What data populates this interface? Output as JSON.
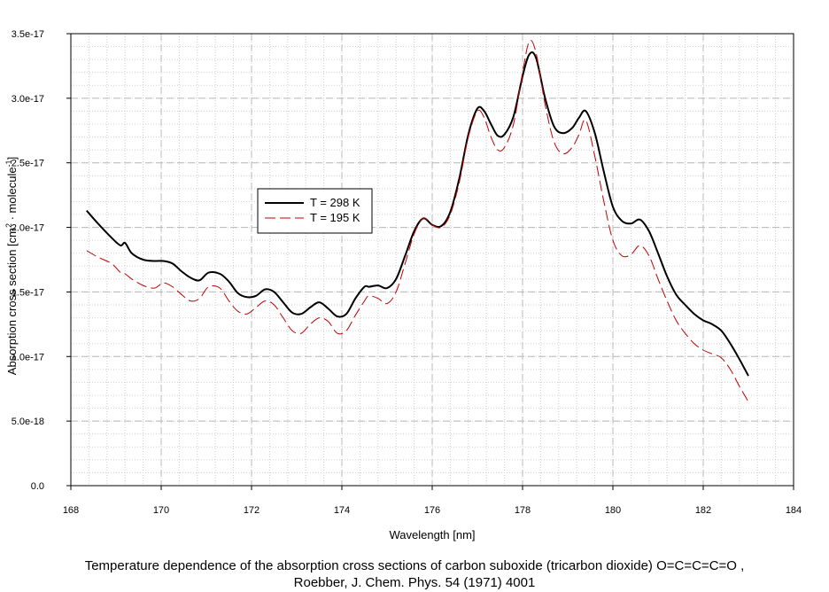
{
  "chart_data": {
    "type": "line",
    "xlabel": "Wavelength [nm]",
    "ylabel_main": "Absorption cross section [cm",
    "ylabel_sup1": "2",
    "ylabel_mid": " · molecule",
    "ylabel_sup2": "-1",
    "ylabel_end": "]",
    "xlim": [
      168,
      184
    ],
    "ylim": [
      0,
      3.5e-17
    ],
    "x_ticks": [
      168,
      170,
      172,
      174,
      176,
      178,
      180,
      182,
      184
    ],
    "x_tick_labels": [
      "168",
      "170",
      "172",
      "174",
      "176",
      "178",
      "180",
      "182",
      "184"
    ],
    "y_ticks": [
      0,
      5e-18,
      1e-17,
      1.5e-17,
      2e-17,
      2.5e-17,
      3e-17,
      3.5e-17
    ],
    "y_tick_labels": [
      "0.0",
      "5.0e-18",
      "1.0e-17",
      "1.5e-17",
      "2.0e-17",
      "2.5e-17",
      "3.0e-17",
      "3.5e-17"
    ],
    "grid": true,
    "legend_position": "center-left",
    "series": [
      {
        "name": "T = 298 K",
        "color": "#000000",
        "style": "solid",
        "x": [
          168.35,
          168.6,
          168.9,
          169.1,
          169.2,
          169.35,
          169.6,
          169.85,
          170.05,
          170.25,
          170.45,
          170.65,
          170.85,
          171.05,
          171.3,
          171.5,
          171.7,
          171.9,
          172.1,
          172.3,
          172.5,
          172.7,
          172.9,
          173.1,
          173.3,
          173.5,
          173.7,
          173.9,
          174.1,
          174.3,
          174.5,
          174.6,
          174.8,
          175.0,
          175.2,
          175.4,
          175.6,
          175.8,
          176.0,
          176.2,
          176.4,
          176.6,
          176.8,
          177.0,
          177.15,
          177.3,
          177.45,
          177.6,
          177.8,
          178.0,
          178.15,
          178.3,
          178.5,
          178.7,
          178.9,
          179.1,
          179.25,
          179.4,
          179.6,
          179.8,
          180.0,
          180.2,
          180.4,
          180.6,
          180.8,
          181.0,
          181.2,
          181.4,
          181.6,
          181.8,
          182.0,
          182.2,
          182.4,
          182.6,
          182.8,
          183.0
        ],
        "values": [
          2.13e-17,
          2.03e-17,
          1.92e-17,
          1.86e-17,
          1.88e-17,
          1.8e-17,
          1.75e-17,
          1.74e-17,
          1.74e-17,
          1.72e-17,
          1.66e-17,
          1.61e-17,
          1.59e-17,
          1.65e-17,
          1.64e-17,
          1.58e-17,
          1.49e-17,
          1.46e-17,
          1.47e-17,
          1.52e-17,
          1.5e-17,
          1.42e-17,
          1.34e-17,
          1.33e-17,
          1.38e-17,
          1.42e-17,
          1.37e-17,
          1.31e-17,
          1.33e-17,
          1.45e-17,
          1.54e-17,
          1.54e-17,
          1.55e-17,
          1.53e-17,
          1.6e-17,
          1.78e-17,
          1.97e-17,
          2.07e-17,
          2.02e-17,
          2.01e-17,
          2.12e-17,
          2.38e-17,
          2.72e-17,
          2.92e-17,
          2.9e-17,
          2.8e-17,
          2.71e-17,
          2.72e-17,
          2.86e-17,
          3.17e-17,
          3.34e-17,
          3.31e-17,
          3e-17,
          2.78e-17,
          2.73e-17,
          2.77e-17,
          2.85e-17,
          2.9e-17,
          2.73e-17,
          2.43e-17,
          2.16e-17,
          2.05e-17,
          2.03e-17,
          2.06e-17,
          1.97e-17,
          1.8e-17,
          1.62e-17,
          1.48e-17,
          1.4e-17,
          1.33e-17,
          1.28e-17,
          1.25e-17,
          1.2e-17,
          1.1e-17,
          9.8e-18,
          8.5e-18
        ]
      },
      {
        "name": "T = 195 K",
        "color": "#c00000",
        "style": "dashed",
        "x": [
          168.35,
          168.6,
          168.9,
          169.1,
          169.2,
          169.35,
          169.6,
          169.85,
          170.05,
          170.25,
          170.45,
          170.65,
          170.85,
          171.05,
          171.3,
          171.5,
          171.7,
          171.9,
          172.1,
          172.3,
          172.5,
          172.7,
          172.9,
          173.1,
          173.3,
          173.5,
          173.7,
          173.9,
          174.1,
          174.3,
          174.5,
          174.6,
          174.8,
          175.0,
          175.2,
          175.4,
          175.6,
          175.8,
          176.0,
          176.2,
          176.4,
          176.6,
          176.8,
          177.0,
          177.15,
          177.3,
          177.45,
          177.6,
          177.8,
          178.0,
          178.15,
          178.3,
          178.5,
          178.7,
          178.9,
          179.1,
          179.25,
          179.4,
          179.6,
          179.8,
          180.0,
          180.2,
          180.4,
          180.6,
          180.8,
          181.0,
          181.2,
          181.4,
          181.6,
          181.8,
          182.0,
          182.2,
          182.4,
          182.6,
          182.8,
          183.0
        ],
        "values": [
          1.82e-17,
          1.77e-17,
          1.72e-17,
          1.65e-17,
          1.64e-17,
          1.6e-17,
          1.55e-17,
          1.53e-17,
          1.57e-17,
          1.54e-17,
          1.48e-17,
          1.43e-17,
          1.45e-17,
          1.54e-17,
          1.53e-17,
          1.43e-17,
          1.35e-17,
          1.33e-17,
          1.38e-17,
          1.43e-17,
          1.4e-17,
          1.3e-17,
          1.2e-17,
          1.18e-17,
          1.25e-17,
          1.3e-17,
          1.27e-17,
          1.18e-17,
          1.2e-17,
          1.32e-17,
          1.43e-17,
          1.47e-17,
          1.45e-17,
          1.41e-17,
          1.5e-17,
          1.72e-17,
          1.95e-17,
          2.07e-17,
          2.02e-17,
          2e-17,
          2.1e-17,
          2.35e-17,
          2.7e-17,
          2.9e-17,
          2.85e-17,
          2.7e-17,
          2.6e-17,
          2.62e-17,
          2.8e-17,
          3.2e-17,
          3.44e-17,
          3.35e-17,
          2.95e-17,
          2.66e-17,
          2.57e-17,
          2.62e-17,
          2.72e-17,
          2.83e-17,
          2.55e-17,
          2.2e-17,
          1.9e-17,
          1.78e-17,
          1.79e-17,
          1.86e-17,
          1.78e-17,
          1.6e-17,
          1.43e-17,
          1.28e-17,
          1.18e-17,
          1.1e-17,
          1.05e-17,
          1.02e-17,
          9.9e-18,
          9e-18,
          7.7e-18,
          6.5e-18
        ]
      }
    ]
  },
  "caption": {
    "line1": "Temperature dependence of the absorption cross sections of carbon suboxide (tricarbon dioxide) O=C=C=C=O ,",
    "line2": "Roebber, J. Chem. Phys. 54 (1971) 4001"
  }
}
